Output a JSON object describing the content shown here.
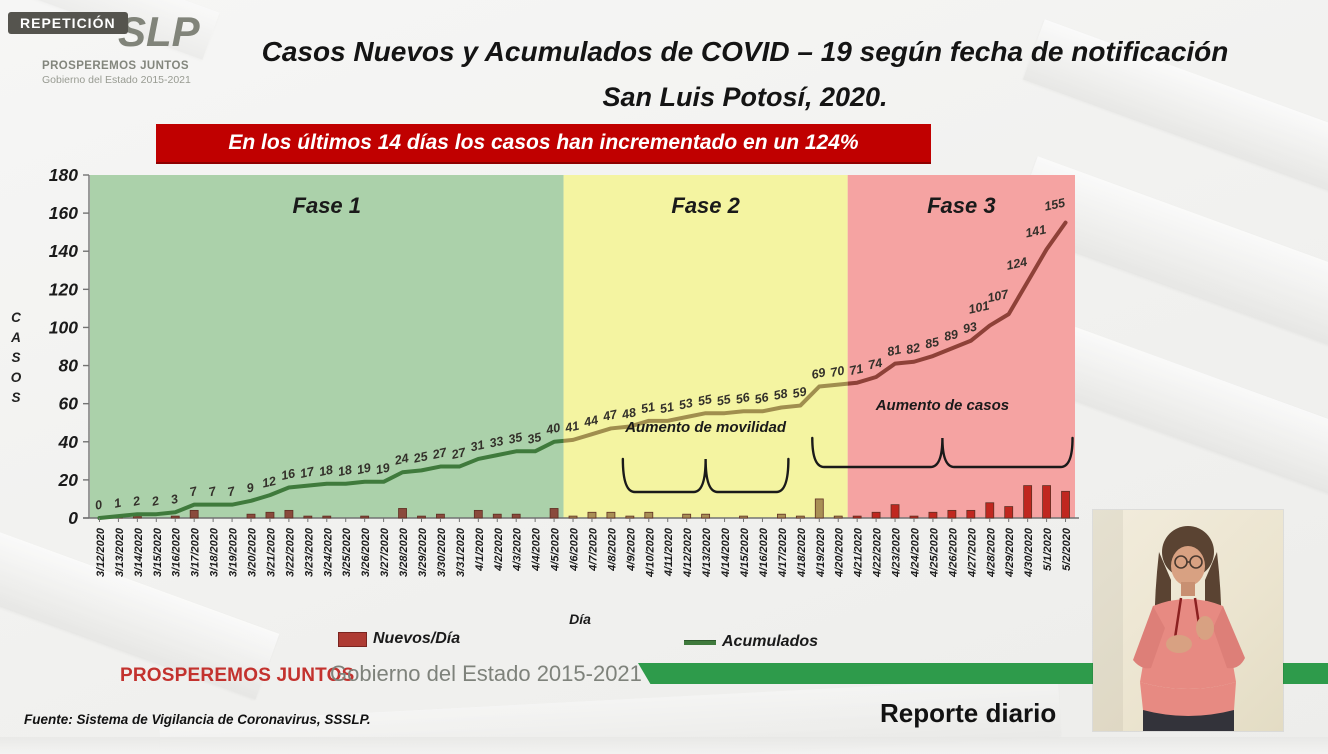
{
  "badge": {
    "text": "REPETICIÓN"
  },
  "logo": {
    "brand": "SLP",
    "line1": "PROSPEREMOS JUNTOS",
    "line2": "Gobierno del Estado 2015-2021"
  },
  "title": {
    "line1": "Casos Nuevos y Acumulados de COVID – 19 según fecha de notificación",
    "line2": "San Luis Potosí, 2020."
  },
  "banner": {
    "text": "En los últimos 14 días los casos han incrementado en un 124%",
    "bg_color": "#C00000"
  },
  "chart_data": {
    "type": "combo",
    "x": [
      "3/12/2020",
      "3/13/2020",
      "3/14/2020",
      "3/15/2020",
      "3/16/2020",
      "3/17/2020",
      "3/18/2020",
      "3/19/2020",
      "3/20/2020",
      "3/21/2020",
      "3/22/2020",
      "3/23/2020",
      "3/24/2020",
      "3/25/2020",
      "3/26/2020",
      "3/27/2020",
      "3/28/2020",
      "3/29/2020",
      "3/30/2020",
      "3/31/2020",
      "4/1/2020",
      "4/2/2020",
      "4/3/2020",
      "4/4/2020",
      "4/5/2020",
      "4/6/2020",
      "4/7/2020",
      "4/8/2020",
      "4/9/2020",
      "4/10/2020",
      "4/11/2020",
      "4/12/2020",
      "4/13/2020",
      "4/14/2020",
      "4/15/2020",
      "4/16/2020",
      "4/17/2020",
      "4/18/2020",
      "4/19/2020",
      "4/20/2020",
      "4/21/2020",
      "4/22/2020",
      "4/23/2020",
      "4/24/2020",
      "4/25/2020",
      "4/26/2020",
      "4/27/2020",
      "4/28/2020",
      "4/29/2020",
      "4/30/2020",
      "5/1/2020",
      "5/2/2020"
    ],
    "series": [
      {
        "name": "Nuevos/Día",
        "type": "bar",
        "values": [
          0,
          1,
          1,
          0,
          1,
          4,
          0,
          0,
          2,
          3,
          4,
          1,
          1,
          0,
          1,
          0,
          5,
          1,
          2,
          0,
          4,
          2,
          2,
          0,
          5,
          1,
          3,
          3,
          1,
          3,
          0,
          2,
          2,
          0,
          1,
          0,
          2,
          1,
          10,
          1,
          1,
          3,
          7,
          1,
          3,
          4,
          4,
          8,
          6,
          17,
          17,
          14
        ]
      },
      {
        "name": "Acumulados",
        "type": "line",
        "values": [
          0,
          1,
          2,
          2,
          3,
          7,
          7,
          7,
          9,
          12,
          16,
          17,
          18,
          18,
          19,
          19,
          24,
          25,
          27,
          27,
          31,
          33,
          35,
          35,
          40,
          41,
          44,
          47,
          48,
          51,
          51,
          53,
          55,
          55,
          56,
          56,
          58,
          59,
          69,
          70,
          71,
          74,
          81,
          82,
          85,
          89,
          93,
          101,
          107,
          124,
          141,
          155
        ]
      }
    ],
    "ylabel": "CASOS",
    "xlabel": "Día",
    "ylim": [
      0,
      180
    ],
    "ytick_step": 20,
    "grid": false,
    "data_labels_series": "Acumulados",
    "phases": [
      {
        "label": "Fase 1",
        "from": "3/12/2020",
        "to": "4/5/2020",
        "start_index": 0,
        "end_index": 24,
        "band_color": "#ABD1AA",
        "line_color": "#3F7A3C",
        "bar_color": "#8A4A3C"
      },
      {
        "label": "Fase 2",
        "from": "4/6/2020",
        "to": "4/20/2020",
        "start_index": 25,
        "end_index": 39,
        "band_color": "#F4F4A1",
        "line_color": "#A08E4E",
        "bar_color": "#A98F55"
      },
      {
        "label": "Fase 3",
        "from": "4/21/2020",
        "to": "5/2/2020",
        "start_index": 40,
        "end_index": 51,
        "band_color": "#F5A3A2",
        "line_color": "#8E4138",
        "bar_color": "#C0271F"
      }
    ],
    "annotations": [
      {
        "text": "Aumento de movilidad",
        "from": "4/9/2020",
        "to": "4/17/2020"
      },
      {
        "text": "Aumento de casos",
        "from": "4/19/2020",
        "to": "5/2/2020"
      }
    ]
  },
  "legend": {
    "items": [
      {
        "label": "Nuevos/Día",
        "swatch": "bar-swatch",
        "color": "#AE3B33"
      },
      {
        "label": "Acumulados",
        "swatch": "line-swatch",
        "color": "#3F7A3C"
      }
    ]
  },
  "footer": {
    "brand_red": "PROSPEREMOS JUNTOS",
    "brand_gray": "Gobierno del Estado 2015-2021",
    "source": "Fuente: Sistema de Vigilancia de Coronavirus, SSSLP.",
    "report": "Reporte diario",
    "band_color": "#2E9B4B"
  }
}
